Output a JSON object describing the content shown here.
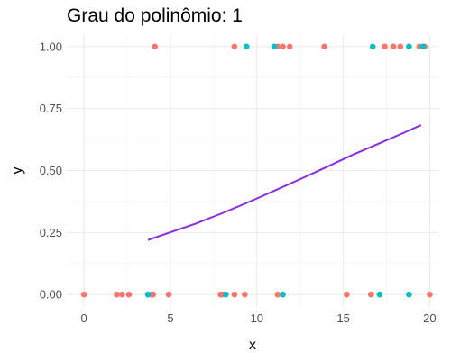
{
  "chart_data": {
    "type": "scatter",
    "title": "Grau do polinômio: 1",
    "xlabel": "x",
    "ylabel": "y",
    "xlim": [
      -1,
      20.5
    ],
    "ylim": [
      -0.05,
      1.05
    ],
    "x_ticks": [
      0,
      5,
      10,
      15,
      20
    ],
    "x_tick_labels": [
      "0",
      "5",
      "10",
      "15",
      "20"
    ],
    "y_ticks": [
      0,
      0.25,
      0.5,
      0.75,
      1
    ],
    "y_tick_labels": [
      "0.00",
      "0.25",
      "0.50",
      "0.75",
      "1.00"
    ],
    "grid": true,
    "legend": "none",
    "colors": {
      "red": "#f8766d",
      "teal": "#00bfc4",
      "fit": "#8a2be2"
    },
    "series": [
      {
        "color": "#f8766d",
        "points": [
          {
            "x": 0.0,
            "y": 0
          },
          {
            "x": 1.9,
            "y": 0
          },
          {
            "x": 2.2,
            "y": 0
          },
          {
            "x": 2.6,
            "y": 0
          },
          {
            "x": 3.9,
            "y": 0
          },
          {
            "x": 4.0,
            "y": 0
          },
          {
            "x": 4.9,
            "y": 0
          },
          {
            "x": 7.9,
            "y": 0
          },
          {
            "x": 8.0,
            "y": 0
          },
          {
            "x": 8.7,
            "y": 0
          },
          {
            "x": 9.3,
            "y": 0
          },
          {
            "x": 11.2,
            "y": 0
          },
          {
            "x": 15.2,
            "y": 0
          },
          {
            "x": 16.6,
            "y": 0
          },
          {
            "x": 20.0,
            "y": 0
          },
          {
            "x": 4.1,
            "y": 1
          },
          {
            "x": 8.7,
            "y": 1
          },
          {
            "x": 11.2,
            "y": 1
          },
          {
            "x": 11.5,
            "y": 1
          },
          {
            "x": 11.9,
            "y": 1
          },
          {
            "x": 13.9,
            "y": 1
          },
          {
            "x": 17.4,
            "y": 1
          },
          {
            "x": 17.9,
            "y": 1
          },
          {
            "x": 18.3,
            "y": 1
          },
          {
            "x": 19.4,
            "y": 1
          },
          {
            "x": 19.7,
            "y": 1
          }
        ]
      },
      {
        "color": "#00bfc4",
        "points": [
          {
            "x": 3.7,
            "y": 0
          },
          {
            "x": 8.2,
            "y": 0
          },
          {
            "x": 11.5,
            "y": 0
          },
          {
            "x": 17.1,
            "y": 0
          },
          {
            "x": 18.8,
            "y": 0
          },
          {
            "x": 9.4,
            "y": 1
          },
          {
            "x": 11.0,
            "y": 1
          },
          {
            "x": 16.7,
            "y": 1
          },
          {
            "x": 18.8,
            "y": 1
          },
          {
            "x": 19.6,
            "y": 1
          }
        ]
      }
    ],
    "fit_line": {
      "x": [
        3.7,
        5,
        6.5,
        8,
        9.5,
        11,
        12.5,
        14,
        15.5,
        17,
        18.5,
        19.5
      ],
      "y": [
        0.22,
        0.251,
        0.287,
        0.328,
        0.372,
        0.418,
        0.465,
        0.513,
        0.562,
        0.607,
        0.652,
        0.683
      ]
    }
  }
}
